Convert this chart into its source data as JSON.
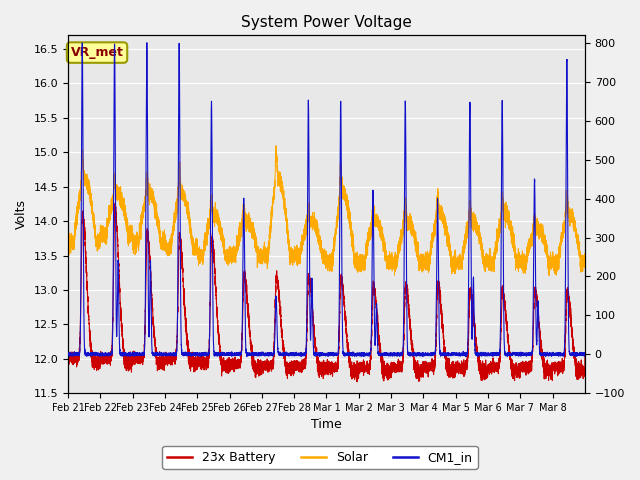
{
  "title": "System Power Voltage",
  "xlabel": "Time",
  "ylabel": "Volts",
  "colors": {
    "battery": "#cc0000",
    "solar": "#ffaa00",
    "cm1": "#1111cc"
  },
  "ylim_left": [
    11.5,
    16.7
  ],
  "ylim_right": [
    -100,
    820
  ],
  "yticks_left": [
    11.5,
    12.0,
    12.5,
    13.0,
    13.5,
    14.0,
    14.5,
    15.0,
    15.5,
    16.0,
    16.5
  ],
  "yticks_right": [
    -100,
    0,
    100,
    200,
    300,
    400,
    500,
    600,
    700,
    800
  ],
  "xtick_labels": [
    "Feb 21",
    "Feb 22",
    "Feb 23",
    "Feb 24",
    "Feb 25",
    "Feb 26",
    "Feb 27",
    "Feb 28",
    "Mar 1",
    "Mar 2",
    "Mar 3",
    "Mar 4",
    "Mar 5",
    "Mar 6",
    "Mar 7",
    "Mar 8"
  ],
  "annotation_text": "VR_met",
  "annotation_color": "#8b0000",
  "annotation_bg": "#ffff99",
  "annotation_edge": "#999900",
  "bg_color": "#e8e8e8",
  "fig_facecolor": "#f0f0f0",
  "figsize": [
    6.4,
    4.8
  ],
  "dpi": 100,
  "n_days": 16,
  "cm1_spike_heights": [
    800,
    800,
    800,
    800,
    650,
    400,
    150,
    650,
    650,
    420,
    650,
    400,
    650,
    650,
    450,
    760
  ],
  "battery_spike_heights": [
    2.1,
    2.2,
    1.8,
    1.8,
    1.8,
    1.3,
    1.3,
    1.3,
    1.3,
    1.2,
    1.2,
    1.2,
    1.1,
    1.1,
    1.1,
    1.1
  ],
  "solar_base": [
    13.8,
    13.9,
    13.8,
    13.7,
    13.6,
    13.6,
    13.6,
    13.6,
    13.5,
    13.5,
    13.5,
    13.5,
    13.5,
    13.5,
    13.5,
    13.5
  ],
  "solar_hump": [
    0.8,
    0.5,
    0.6,
    0.7,
    0.5,
    0.4,
    1.0,
    0.4,
    0.9,
    0.5,
    0.5,
    0.6,
    0.5,
    0.6,
    0.4,
    0.6
  ],
  "battery_baseline_offset": [
    0.0,
    0.0,
    0.0,
    0.0,
    -0.05,
    -0.08,
    -0.1,
    -0.1,
    -0.12,
    -0.13,
    -0.13,
    -0.12,
    -0.13,
    -0.13,
    -0.12,
    -0.13
  ]
}
